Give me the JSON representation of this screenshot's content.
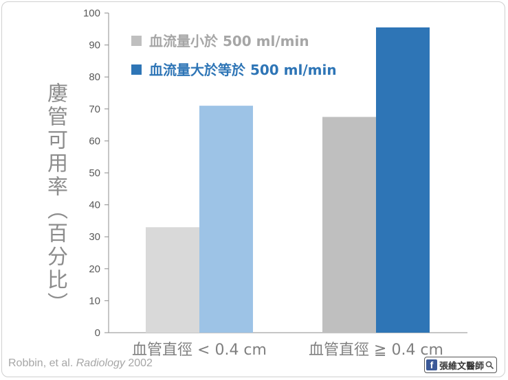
{
  "chart_data": {
    "type": "bar",
    "categories": [
      "血管直徑 < 0.4 cm",
      "血管直徑 ≧ 0.4 cm"
    ],
    "series": [
      {
        "name": "血流量小於 500 ml/min",
        "values": [
          33,
          67.5
        ]
      },
      {
        "name": "血流量大於等於 500 ml/min",
        "values": [
          71,
          95.5
        ]
      }
    ],
    "ylabel": "廔管可用率（百分比）",
    "ylim": [
      0,
      100
    ],
    "yticks": [
      0,
      10,
      20,
      30,
      40,
      50,
      60,
      70,
      80,
      90,
      100
    ],
    "grid": false,
    "legend": "top-left inside plot",
    "colors": {
      "light_series": [
        "#d9d9d9",
        "#9dc3e6"
      ],
      "dark_series": [
        "#bfbfbf",
        "#2e75b6"
      ],
      "legend_text": [
        "#a6a6a6",
        "#2e75b6"
      ]
    }
  },
  "citation": {
    "authors": "Robbin, et al. ",
    "journal": "Radiology",
    "year": " 2002"
  },
  "brand": {
    "name": "張維文醫師",
    "icons": [
      "facebook-icon",
      "search-icon"
    ]
  }
}
